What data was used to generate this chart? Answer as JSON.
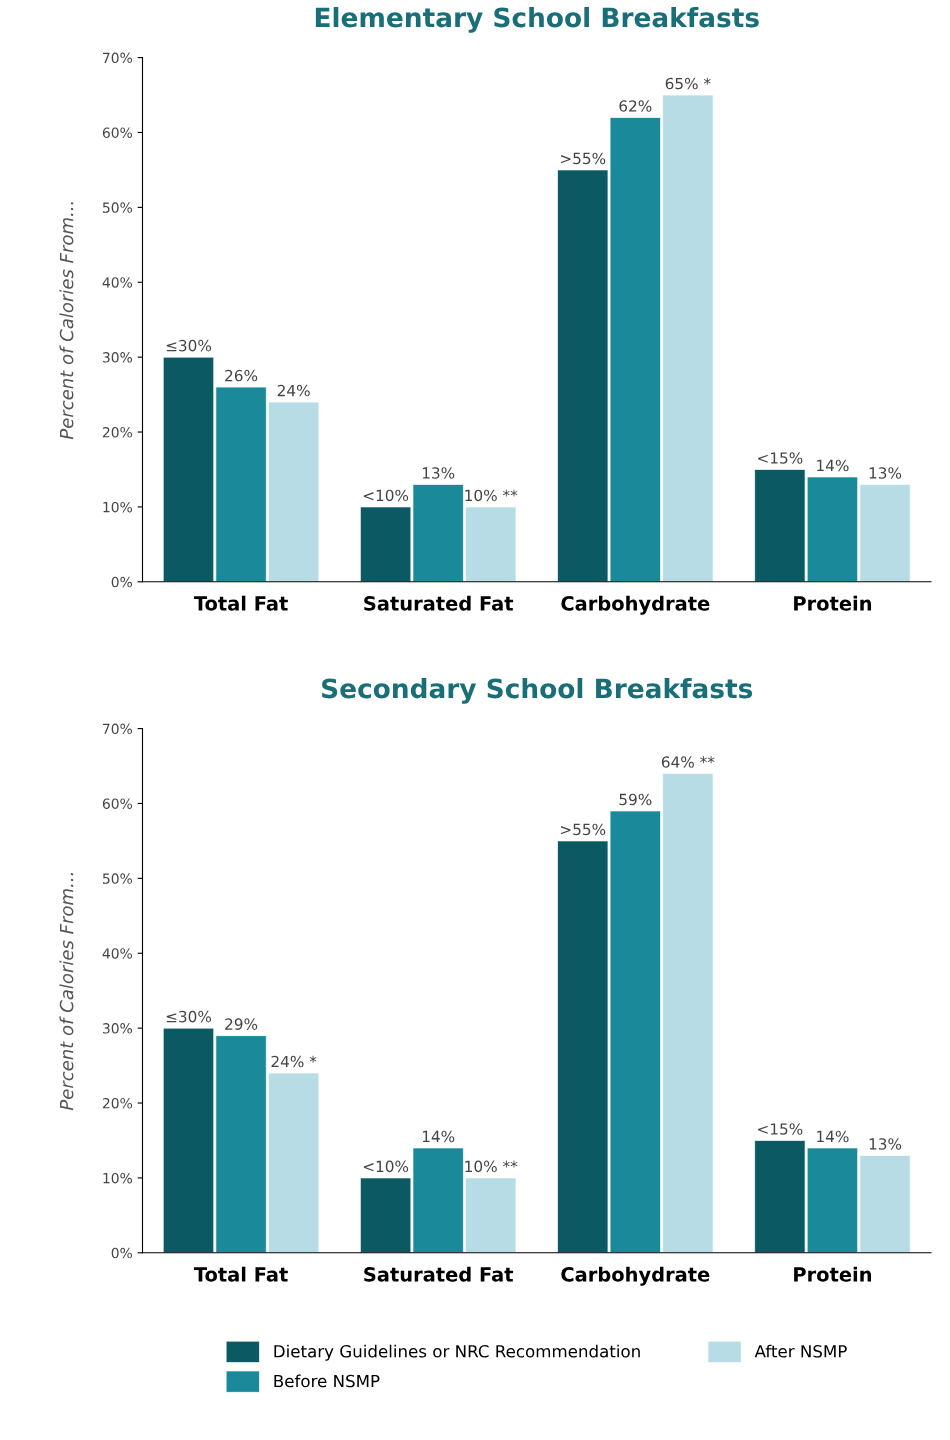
{
  "chart_data": [
    {
      "type": "bar",
      "title": "Elementary School Breakfasts",
      "ylabel": "Percent of Calories From...",
      "categories": [
        "Total Fat",
        "Saturated Fat",
        "Carbohydrate",
        "Protein"
      ],
      "ylim": [
        0,
        70
      ],
      "yticks": [
        {
          "value": 0,
          "label": "0%"
        },
        {
          "value": 10,
          "label": "10%"
        },
        {
          "value": 20,
          "label": "20%"
        },
        {
          "value": 30,
          "label": "30%"
        },
        {
          "value": 40,
          "label": "40%"
        },
        {
          "value": 50,
          "label": "50%"
        },
        {
          "value": 60,
          "label": "60%"
        },
        {
          "value": 70,
          "label": "70%"
        }
      ],
      "grid": false,
      "legend": false,
      "series": [
        {
          "color": "#0b5a63",
          "values": [
            30,
            10,
            55,
            15
          ],
          "value_labels": [
            "≤30%",
            "<10%",
            ">55%",
            "<15%"
          ]
        },
        {
          "color": "#1a8a9a",
          "values": [
            26,
            13,
            62,
            14
          ],
          "value_labels": [
            "26%",
            "13%",
            "62%",
            "14%"
          ]
        },
        {
          "color": "#b8dce6",
          "values": [
            24,
            10,
            65,
            13
          ],
          "value_labels": [
            "24%",
            "10% **",
            "65% *",
            "13%"
          ]
        }
      ]
    },
    {
      "type": "bar",
      "title": "Secondary School Breakfasts",
      "ylabel": "Percent of Calories From...",
      "categories": [
        "Total Fat",
        "Saturated Fat",
        "Carbohydrate",
        "Protein"
      ],
      "ylim": [
        0,
        70
      ],
      "yticks": [
        {
          "value": 0,
          "label": "0%"
        },
        {
          "value": 10,
          "label": "10%"
        },
        {
          "value": 20,
          "label": "20%"
        },
        {
          "value": 30,
          "label": "30%"
        },
        {
          "value": 40,
          "label": "40%"
        },
        {
          "value": 50,
          "label": "50%"
        },
        {
          "value": 60,
          "label": "60%"
        },
        {
          "value": 70,
          "label": "70%"
        }
      ],
      "grid": false,
      "legend": "bottom",
      "series": [
        {
          "name": "Dietary Guidelines or NRC Recommendation",
          "color": "#0b5a63",
          "values": [
            30,
            10,
            55,
            15
          ],
          "value_labels": [
            "≤30%",
            "<10%",
            ">55%",
            "<15%"
          ]
        },
        {
          "name": "Before NSMP",
          "color": "#1a8a9a",
          "values": [
            29,
            14,
            59,
            14
          ],
          "value_labels": [
            "29%",
            "14%",
            "59%",
            "14%"
          ]
        },
        {
          "name": "After NSMP",
          "color": "#b8dce6",
          "values": [
            24,
            10,
            64,
            13
          ],
          "value_labels": [
            "24% *",
            "10% **",
            "64% **",
            "13%"
          ]
        }
      ]
    }
  ]
}
